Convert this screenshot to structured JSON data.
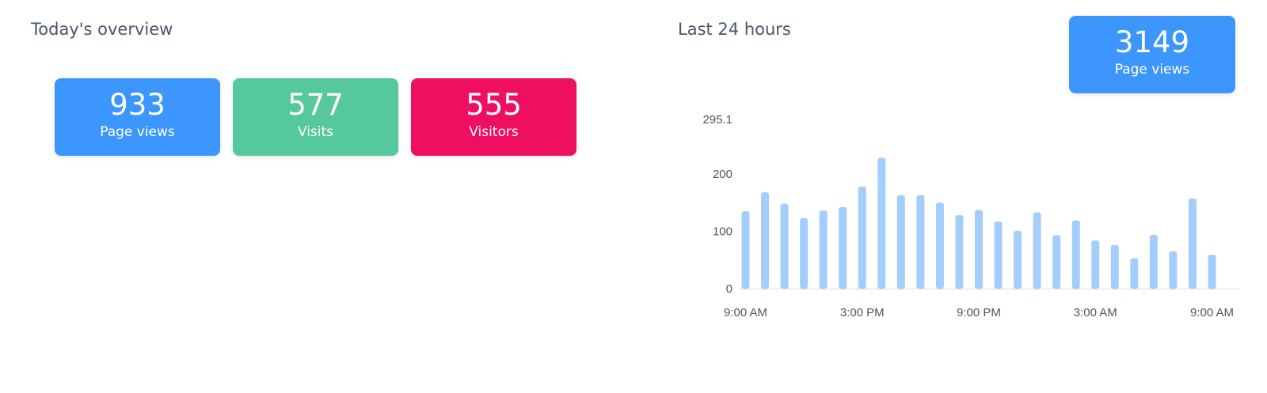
{
  "today": {
    "title": "Today's overview",
    "cards": [
      {
        "value": "933",
        "label": "Page views",
        "color": "#3d96fb"
      },
      {
        "value": "577",
        "label": "Visits",
        "color": "#56c89e"
      },
      {
        "value": "555",
        "label": "Visitors",
        "color": "#ee0f60"
      }
    ]
  },
  "last24": {
    "title": "Last 24 hours",
    "total": {
      "value": "3149",
      "label": "Page views",
      "color": "#3d96fb"
    }
  },
  "chart_data": {
    "type": "bar",
    "bar_color": "#a3cdfa",
    "ylim": [
      0,
      295.1
    ],
    "y_ticks": [
      "0",
      "100",
      "200",
      "295.1"
    ],
    "x_ticks": [
      "9:00 AM",
      "3:00 PM",
      "9:00 PM",
      "3:00 AM",
      "9:00 AM"
    ],
    "values": [
      135,
      168,
      148,
      123,
      136,
      142,
      178,
      228,
      163,
      163,
      150,
      128,
      137,
      117,
      101,
      133,
      93,
      119,
      84,
      76,
      53,
      94,
      65,
      157,
      59
    ]
  }
}
